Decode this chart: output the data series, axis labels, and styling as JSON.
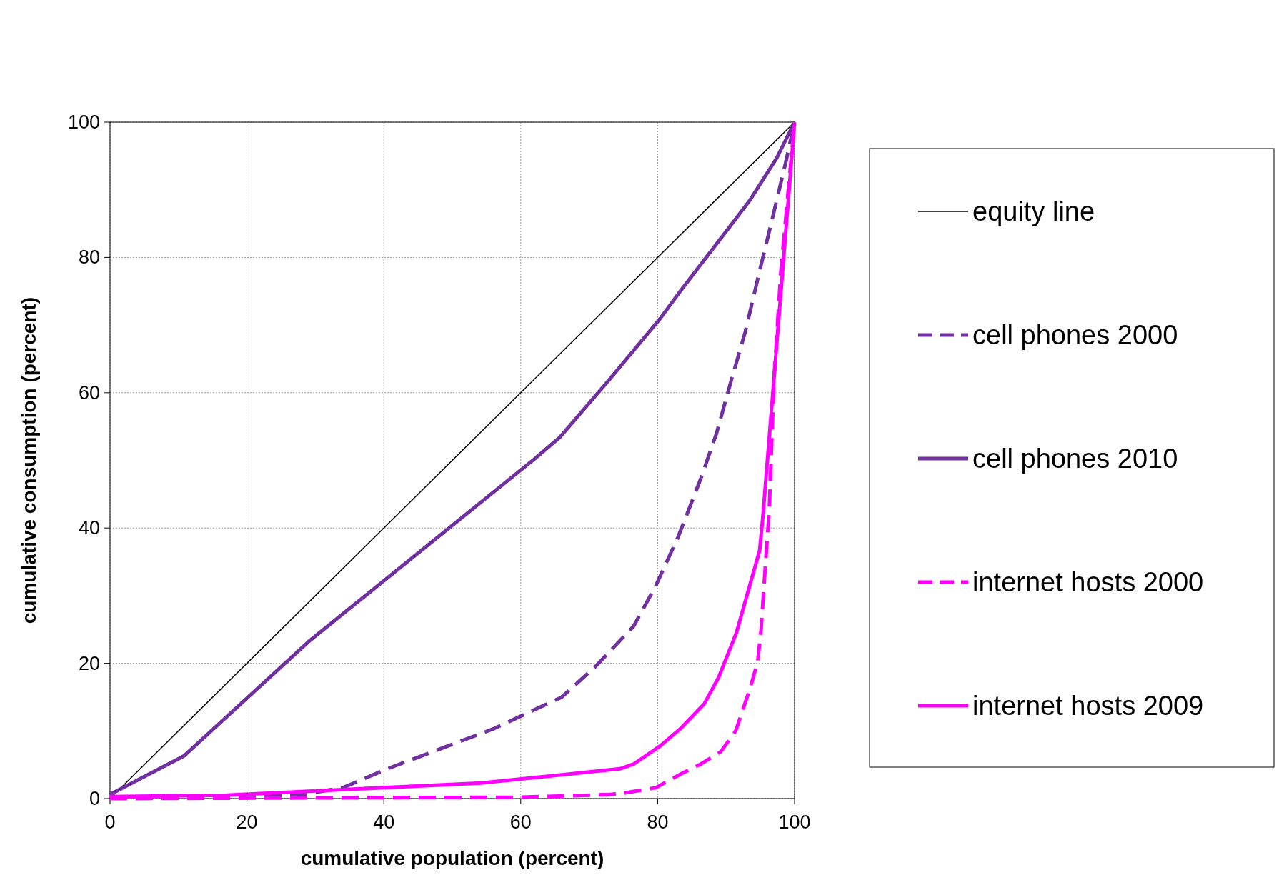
{
  "chart_data": {
    "type": "line",
    "xlabel": "cumulative population (percent)",
    "ylabel": "cumulative consumption (percent)",
    "xlim": [
      0,
      100
    ],
    "ylim": [
      0,
      100
    ],
    "xticks": [
      0,
      20,
      40,
      60,
      80,
      100
    ],
    "yticks": [
      0,
      20,
      40,
      60,
      80,
      100
    ],
    "grid": true,
    "legend": "right",
    "marker": "none",
    "series": [
      {
        "name": "equity line",
        "color": "#000000",
        "line_style": "solid",
        "x": [
          0,
          100
        ],
        "values": [
          0,
          100
        ]
      },
      {
        "name": "cell phones 2000",
        "color": "#7030a0",
        "line_style": "dashed",
        "x": [
          0,
          27.5,
          34,
          40.5,
          56,
          66,
          71,
          76.5,
          79.7,
          83,
          86.3,
          88.6,
          90.8,
          92.8,
          94.8,
          96.7,
          98.7,
          100
        ],
        "values": [
          0.2,
          0.5,
          1.6,
          4.4,
          10.3,
          15,
          19.6,
          25.5,
          31.4,
          38.7,
          47.3,
          54,
          62,
          69,
          77.6,
          85.5,
          94,
          100
        ]
      },
      {
        "name": "cell phones 2010",
        "color": "#7030a0",
        "line_style": "solid",
        "x": [
          0,
          10.8,
          29,
          62,
          65.7,
          73,
          80.4,
          83.3,
          90.5,
          93.5,
          97.4,
          100
        ],
        "values": [
          0.6,
          6.3,
          23.2,
          50.2,
          53.4,
          62,
          71,
          75,
          84.5,
          88.5,
          94.7,
          100
        ]
      },
      {
        "name": "internet hosts 2000",
        "color": "#ff00ff",
        "line_style": "dashed",
        "x": [
          0,
          60,
          73,
          75,
          79.7,
          83.7,
          86.3,
          89.2,
          91.4,
          93.5,
          94.6,
          95.1,
          95.8,
          96.3,
          97,
          98,
          100
        ],
        "values": [
          0,
          0.2,
          0.6,
          0.8,
          1.6,
          3.8,
          5.1,
          6.9,
          10,
          16.3,
          20.2,
          24.9,
          35.4,
          42.6,
          62,
          78,
          100
        ]
      },
      {
        "name": "internet hosts 2009",
        "color": "#ff00ff",
        "line_style": "solid",
        "x": [
          0,
          17,
          54.2,
          74.5,
          76.5,
          80.4,
          83.3,
          86.8,
          88.9,
          91.5,
          94.9,
          95.4,
          100
        ],
        "values": [
          0.3,
          0.5,
          2.3,
          4.4,
          5.1,
          7.8,
          10.3,
          14,
          17.9,
          24.5,
          36.7,
          42,
          100
        ]
      }
    ]
  }
}
